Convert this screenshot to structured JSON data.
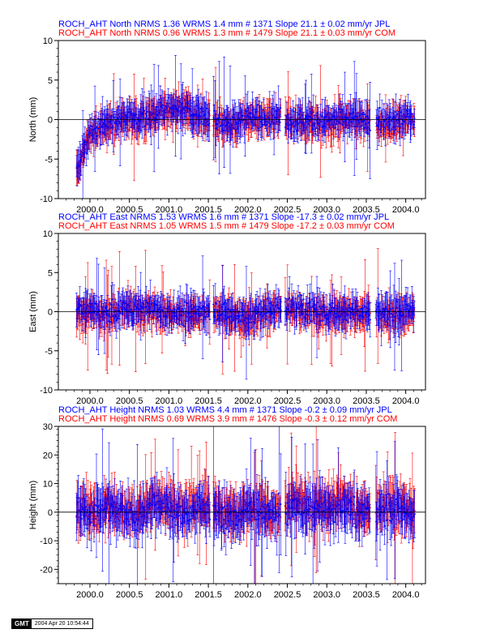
{
  "colors": {
    "jpl": "#0000ff",
    "com": "#ff0000",
    "axis": "#000000"
  },
  "chart_data": [
    {
      "type": "scatter",
      "title_lines": [
        {
          "text": "ROCH_AHT North NRMS 1.36 WRMS  1.4 mm # 1371 Slope   21.1 ±  0.02 mm/yr JPL",
          "color": "#0000ff"
        },
        {
          "text": "ROCH_AHT North NRMS 0.96 WRMS  1.3 mm # 1479 Slope   21.1 ±  0.03 mm/yr COM",
          "color": "#ff0000"
        }
      ],
      "ylabel": "North (mm)",
      "xlim": [
        1999.6,
        2004.25
      ],
      "ylim": [
        -10,
        10
      ],
      "yticks": [
        -10,
        -5,
        0,
        5,
        10
      ],
      "ytick_labels": [
        "-10",
        "-5",
        "0",
        "5",
        "10"
      ],
      "xticks": [
        2000.0,
        2000.5,
        2001.0,
        2001.5,
        2002.0,
        2002.5,
        2003.0,
        2003.5,
        2004.0
      ],
      "xtick_labels": [
        "2000.0",
        "2000.5",
        "2001.0",
        "2001.5",
        "2002.0",
        "2002.5",
        "2003.0",
        "2003.5",
        "2004.0"
      ],
      "series": [
        {
          "name": "JPL",
          "color": "#0000ff",
          "x": [
            1999.85,
            1999.9,
            2000.0,
            2000.2,
            2000.4,
            2000.6,
            2000.8,
            2001.0,
            2001.2,
            2001.4,
            2001.6,
            2001.8,
            2002.0,
            2002.2,
            2002.4,
            2002.6,
            2002.8,
            2003.0,
            2003.2,
            2003.4,
            2003.6,
            2003.8,
            2004.0,
            2004.1
          ],
          "y": [
            -6,
            -4,
            -1.5,
            -0.5,
            0,
            0.3,
            0.8,
            1.5,
            1.5,
            0.5,
            0,
            -0.5,
            0.4,
            0.3,
            0.2,
            -0.2,
            0,
            -0.3,
            0.1,
            0,
            -0.5,
            -0.4,
            0.1,
            0.2
          ]
        },
        {
          "name": "COM",
          "color": "#ff0000",
          "x": [
            1999.85,
            1999.9,
            2000.0,
            2000.2,
            2000.4,
            2000.6,
            2000.8,
            2001.0,
            2001.2,
            2001.4,
            2001.6,
            2001.8,
            2002.0,
            2002.2,
            2002.4,
            2002.6,
            2002.8,
            2003.0,
            2003.2,
            2003.4,
            2003.6,
            2003.8,
            2004.0,
            2004.1
          ],
          "y": [
            -6.5,
            -4.5,
            -1.8,
            -0.8,
            -0.2,
            0.1,
            0.6,
            1.3,
            1.3,
            0.3,
            -0.2,
            -0.7,
            0.2,
            0.1,
            0,
            -0.4,
            -0.2,
            -0.5,
            -0.1,
            -0.2,
            -0.7,
            -0.6,
            -0.1,
            0
          ]
        }
      ]
    },
    {
      "type": "scatter",
      "title_lines": [
        {
          "text": "ROCH_AHT East NRMS 1.53 WRMS  1.6 mm # 1371 Slope  -17.3 ±  0.02 mm/yr JPL",
          "color": "#0000ff"
        },
        {
          "text": "ROCH_AHT East NRMS 1.05 WRMS  1.5 mm # 1479 Slope  -17.2 ±  0.03 mm/yr COM",
          "color": "#ff0000"
        }
      ],
      "ylabel": "East (mm)",
      "xlim": [
        1999.6,
        2004.25
      ],
      "ylim": [
        -10,
        10
      ],
      "yticks": [
        -10,
        -5,
        0,
        5,
        10
      ],
      "ytick_labels": [
        "-10",
        "-5",
        "0",
        "5",
        "10"
      ],
      "xticks": [
        2000.0,
        2000.5,
        2001.0,
        2001.5,
        2002.0,
        2002.5,
        2003.0,
        2003.5,
        2004.0
      ],
      "xtick_labels": [
        "2000.0",
        "2000.5",
        "2001.0",
        "2001.5",
        "2002.0",
        "2002.5",
        "2003.0",
        "2003.5",
        "2004.0"
      ],
      "series": [
        {
          "name": "JPL",
          "color": "#0000ff",
          "x": [
            1999.85,
            2000.0,
            2000.2,
            2000.4,
            2000.6,
            2000.8,
            2001.0,
            2001.2,
            2001.4,
            2001.6,
            2001.8,
            2002.0,
            2002.2,
            2002.4,
            2002.6,
            2002.8,
            2003.0,
            2003.2,
            2003.4,
            2003.6,
            2003.8,
            2004.0,
            2004.1
          ],
          "y": [
            0,
            0.5,
            -0.5,
            0.3,
            0.5,
            0.2,
            0.1,
            -0.2,
            0,
            0.3,
            -0.5,
            -0.8,
            0.2,
            0.4,
            0.5,
            0.3,
            -0.2,
            0.1,
            0,
            0.2,
            -0.3,
            0,
            0.1
          ]
        },
        {
          "name": "COM",
          "color": "#ff0000",
          "x": [
            1999.85,
            2000.0,
            2000.2,
            2000.4,
            2000.6,
            2000.8,
            2001.0,
            2001.2,
            2001.4,
            2001.6,
            2001.8,
            2002.0,
            2002.2,
            2002.4,
            2002.6,
            2002.8,
            2003.0,
            2003.2,
            2003.4,
            2003.6,
            2003.8,
            2004.0,
            2004.1
          ],
          "y": [
            -0.3,
            0.2,
            -0.8,
            0,
            0.2,
            -0.1,
            -0.2,
            -0.5,
            -0.3,
            0,
            -0.8,
            -1.1,
            -0.1,
            0.1,
            0.2,
            0,
            -0.5,
            -0.2,
            -0.3,
            -0.1,
            -0.6,
            -0.3,
            -0.2
          ]
        }
      ]
    },
    {
      "type": "scatter",
      "title_lines": [
        {
          "text": "ROCH_AHT Height NRMS 1.03 WRMS  4.4 mm # 1371 Slope   -0.2 ±  0.09 mm/yr JPL",
          "color": "#0000ff"
        },
        {
          "text": "ROCH_AHT Height NRMS 0.69 WRMS  3.9 mm # 1476 Slope   -0.3 ±  0.12 mm/yr COM",
          "color": "#ff0000"
        }
      ],
      "ylabel": "Height (mm)",
      "xlim": [
        1999.6,
        2004.25
      ],
      "ylim": [
        -25,
        30
      ],
      "yticks": [
        -20,
        -10,
        0,
        10,
        20,
        30
      ],
      "ytick_labels": [
        "-20",
        "-10",
        "0",
        "10",
        "20",
        "30"
      ],
      "xticks": [
        2000.0,
        2000.5,
        2001.0,
        2001.5,
        2002.0,
        2002.5,
        2003.0,
        2003.5,
        2004.0
      ],
      "xtick_labels": [
        "2000.0",
        "2000.5",
        "2001.0",
        "2001.5",
        "2002.0",
        "2002.5",
        "2003.0",
        "2003.5",
        "2004.0"
      ],
      "series": [
        {
          "name": "JPL",
          "color": "#0000ff",
          "x": [
            1999.85,
            2000.0,
            2000.2,
            2000.4,
            2000.6,
            2000.8,
            2001.0,
            2001.2,
            2001.4,
            2001.6,
            2001.8,
            2002.0,
            2002.2,
            2002.4,
            2002.6,
            2002.8,
            2003.0,
            2003.2,
            2003.4,
            2003.6,
            2003.8,
            2004.0,
            2004.1
          ],
          "y": [
            1,
            -1,
            2,
            0,
            -2,
            3,
            1,
            -1,
            2,
            0,
            -2,
            1,
            0,
            -1,
            2,
            1,
            0,
            3,
            -1,
            1,
            2,
            0,
            -1
          ]
        },
        {
          "name": "COM",
          "color": "#ff0000",
          "x": [
            1999.85,
            2000.0,
            2000.2,
            2000.4,
            2000.6,
            2000.8,
            2001.0,
            2001.2,
            2001.4,
            2001.6,
            2001.8,
            2002.0,
            2002.2,
            2002.4,
            2002.6,
            2002.8,
            2003.0,
            2003.2,
            2003.4,
            2003.6,
            2003.8,
            2004.0,
            2004.1
          ],
          "y": [
            2,
            0,
            3,
            1,
            -1,
            5,
            2,
            0,
            3,
            1,
            -1,
            2,
            1,
            0,
            4,
            3,
            1,
            6,
            0,
            2,
            4,
            1,
            0
          ]
        }
      ]
    }
  ],
  "footer": {
    "logo_text": "GMT",
    "timestamp": "2004 Apr 20 10:54:44"
  }
}
